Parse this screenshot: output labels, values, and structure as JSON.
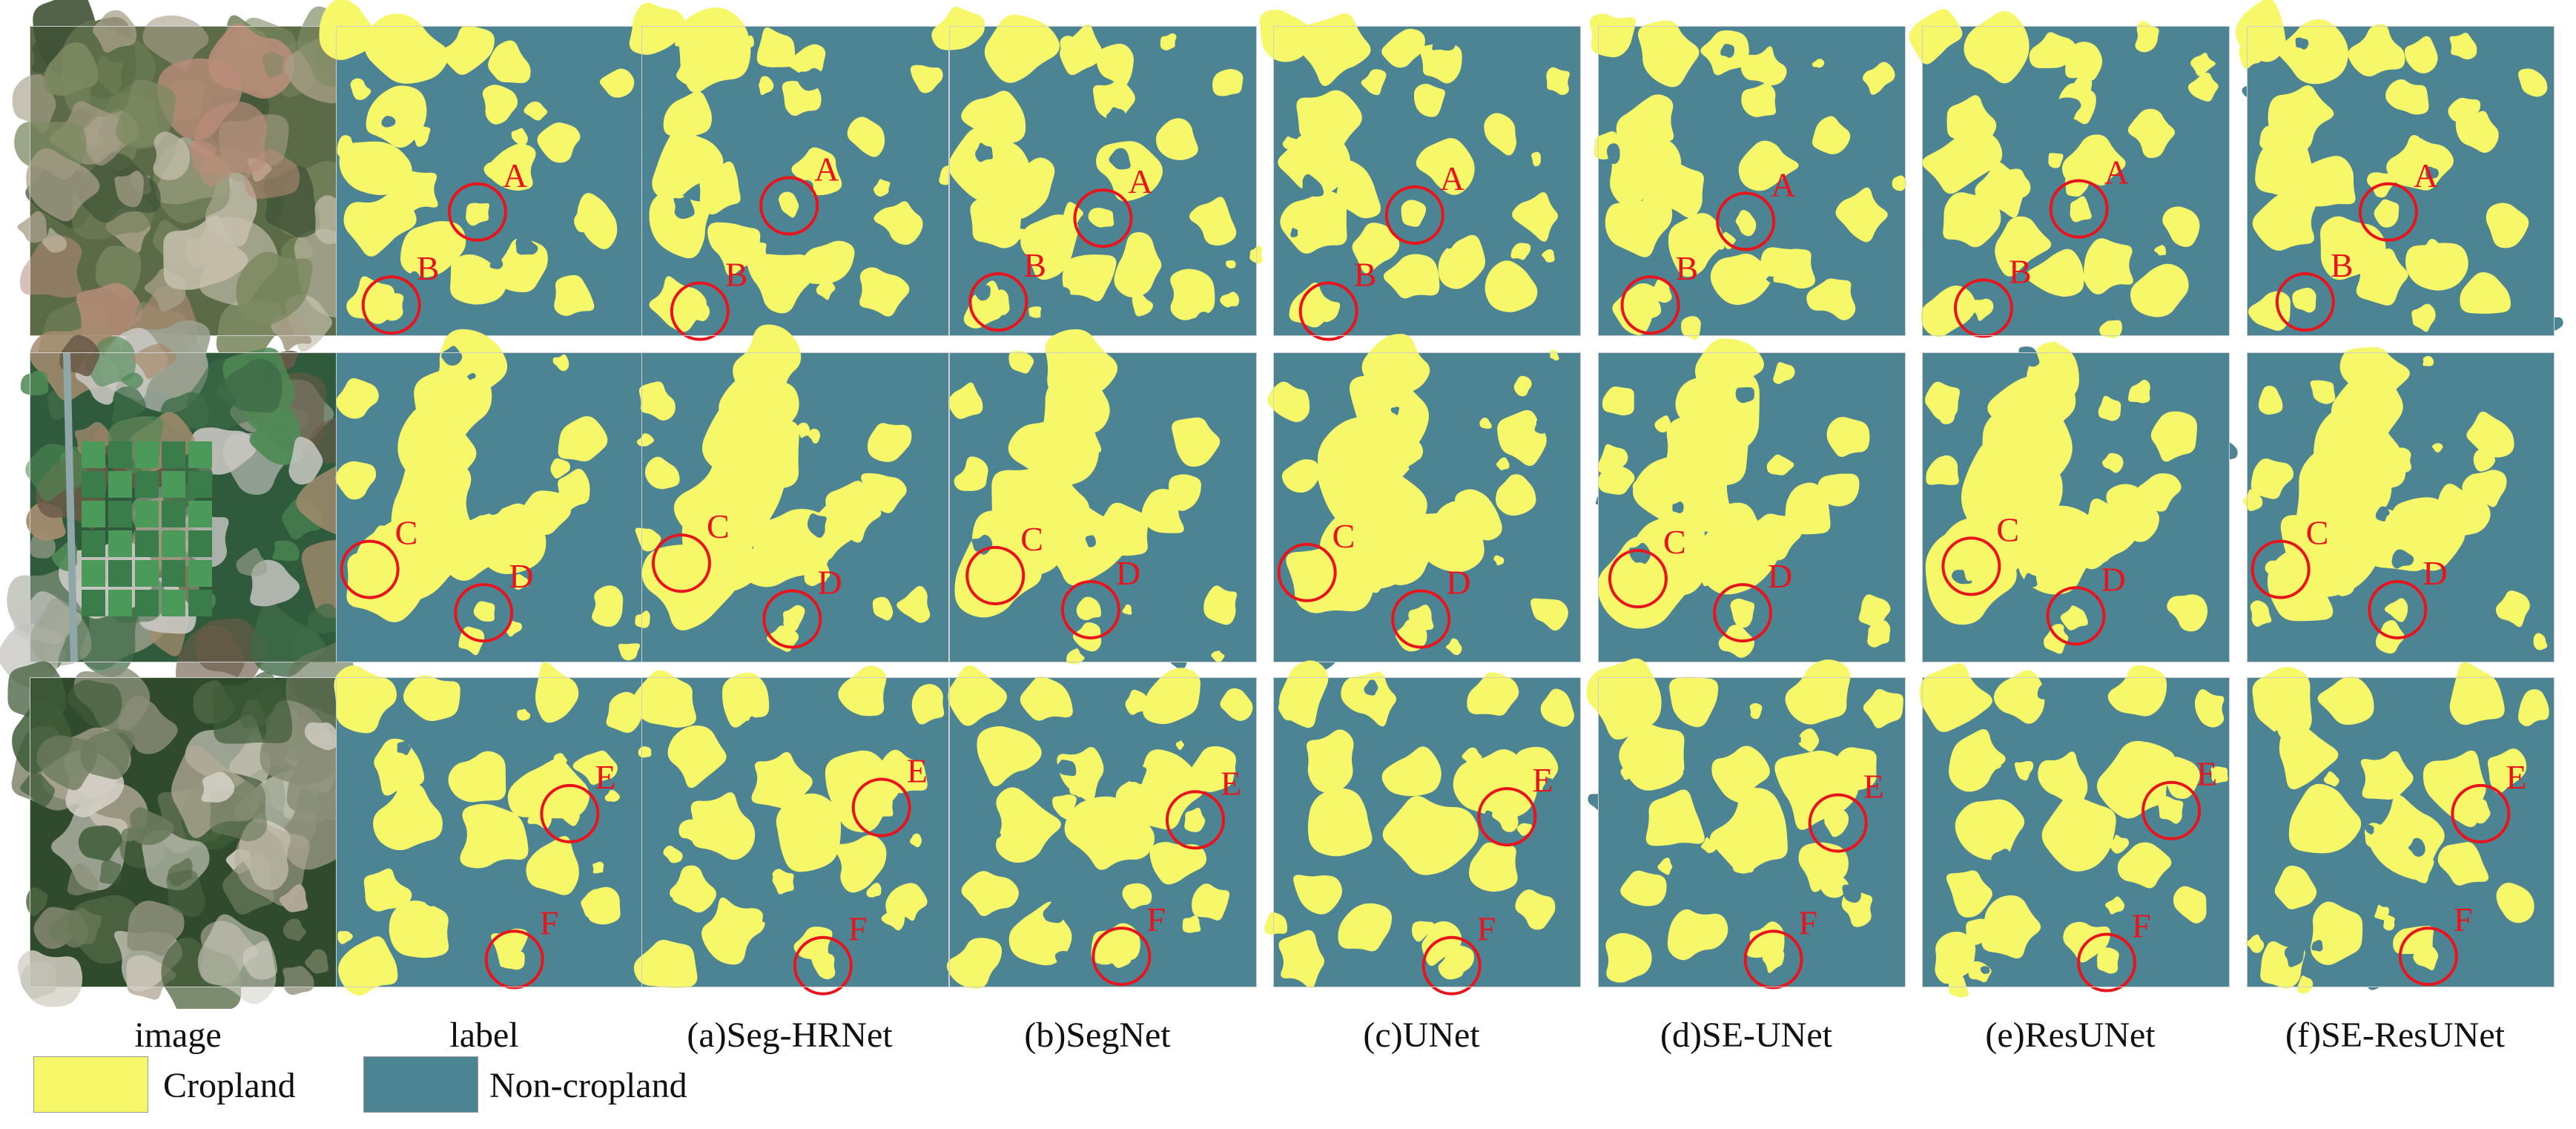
{
  "colors": {
    "cropland": "#f7f76a",
    "noncropland": "#4d8493",
    "marker": "#e8141c"
  },
  "columns": [
    {
      "caption": "image"
    },
    {
      "caption": "label"
    },
    {
      "caption": "(a)Seg-HRNet"
    },
    {
      "caption": "(b)SegNet"
    },
    {
      "caption": "(c)UNet"
    },
    {
      "caption": "(d)SE-UNet"
    },
    {
      "caption": "(e)ResUNet"
    },
    {
      "caption": "(f)SE-ResUNet"
    }
  ],
  "rows": [
    {
      "markers": [
        "A",
        "B"
      ]
    },
    {
      "markers": [
        "C",
        "D"
      ]
    },
    {
      "markers": [
        "E",
        "F"
      ]
    }
  ],
  "legend": [
    {
      "label": "Cropland"
    },
    {
      "label": "Non-cropland"
    }
  ]
}
